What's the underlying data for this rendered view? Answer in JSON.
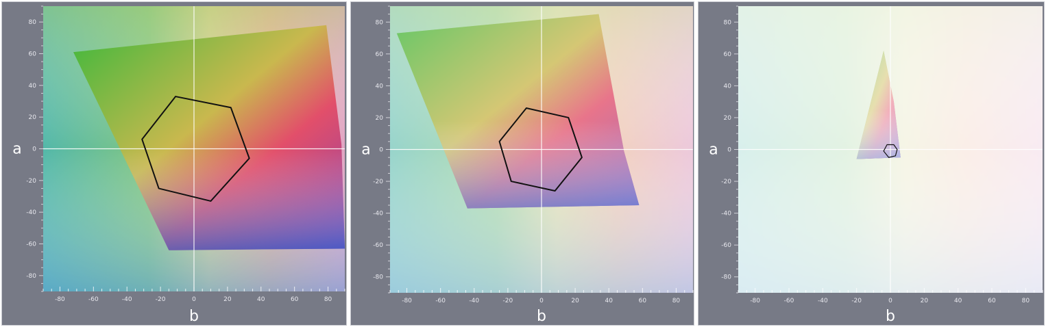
{
  "chart_data": [
    {
      "type": "scatter",
      "xlabel": "b",
      "ylabel": "a",
      "xlim": [
        -90,
        90
      ],
      "ylim": [
        -90,
        90
      ],
      "xticks": [
        -80,
        -60,
        -40,
        -20,
        0,
        20,
        40,
        60,
        80
      ],
      "yticks": [
        80,
        60,
        40,
        20,
        0,
        -20,
        -40,
        -60,
        -80
      ],
      "xtick_labels": [
        "-80",
        "-60",
        "-40",
        "-20",
        "0",
        "20",
        "40",
        "60",
        "80"
      ],
      "ytick_labels": [
        "80",
        "60",
        "40",
        "20",
        "0",
        "-20",
        "-40",
        "-60",
        "-80"
      ],
      "gamut_boundary": [
        [
          -72,
          61
        ],
        [
          79,
          78
        ],
        [
          88,
          3
        ],
        [
          90,
          -63
        ],
        [
          -15,
          -64
        ]
      ],
      "outline": [
        [
          -11,
          33
        ],
        [
          22,
          26
        ],
        [
          33,
          -6
        ],
        [
          10,
          -33
        ],
        [
          -21,
          -25
        ],
        [
          -31,
          6
        ]
      ],
      "grid": false
    },
    {
      "type": "scatter",
      "xlabel": "b",
      "ylabel": "a",
      "xlim": [
        -90,
        90
      ],
      "ylim": [
        -90,
        90
      ],
      "xticks": [
        -80,
        -60,
        -40,
        -20,
        0,
        20,
        40,
        60,
        80
      ],
      "yticks": [
        80,
        60,
        40,
        20,
        0,
        -20,
        -40,
        -60,
        -80
      ],
      "xtick_labels": [
        "-80",
        "-60",
        "-40",
        "-20",
        "0",
        "20",
        "40",
        "60",
        "80"
      ],
      "ytick_labels": [
        "80",
        "60",
        "40",
        "20",
        "0",
        "-20",
        "-40",
        "-60",
        "-80"
      ],
      "gamut_boundary": [
        [
          -86,
          73
        ],
        [
          34,
          85
        ],
        [
          49,
          -1
        ],
        [
          58,
          -35
        ],
        [
          -44,
          -37
        ]
      ],
      "outline": [
        [
          -9,
          26
        ],
        [
          16,
          20
        ],
        [
          24,
          -5
        ],
        [
          8,
          -26
        ],
        [
          -18,
          -20
        ],
        [
          -25,
          5
        ]
      ],
      "grid": false
    },
    {
      "type": "scatter",
      "xlabel": "b",
      "ylabel": "a",
      "xlim": [
        -90,
        90
      ],
      "ylim": [
        -90,
        90
      ],
      "xticks": [
        -80,
        -60,
        -40,
        -20,
        0,
        20,
        40,
        60,
        80
      ],
      "yticks": [
        80,
        60,
        40,
        20,
        0,
        -20,
        -40,
        -60,
        -80
      ],
      "xtick_labels": [
        "-80",
        "-60",
        "-40",
        "-20",
        "0",
        "20",
        "40",
        "60",
        "80"
      ],
      "ytick_labels": [
        "80",
        "60",
        "40",
        "20",
        "0",
        "-20",
        "-40",
        "-60",
        "-80"
      ],
      "gamut_boundary": [
        [
          -4,
          62
        ],
        [
          2,
          30
        ],
        [
          6,
          -5
        ],
        [
          -20,
          -6
        ]
      ],
      "outline": [
        [
          -2,
          3
        ],
        [
          2,
          3
        ],
        [
          4,
          0
        ],
        [
          3,
          -4
        ],
        [
          -1,
          -5
        ],
        [
          -4,
          -1
        ]
      ],
      "grid": false
    }
  ],
  "colors": {
    "panel_frame": "#777a86",
    "outline": "#111111",
    "axis_line": "#ffffff"
  }
}
